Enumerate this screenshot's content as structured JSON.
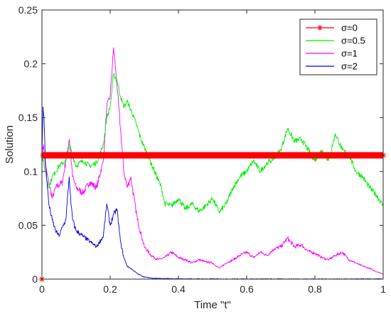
{
  "chart_data": {
    "type": "line",
    "xlabel": "Time \"t\"",
    "ylabel": "Solution",
    "xlim": [
      0,
      1
    ],
    "ylim": [
      0,
      0.25
    ],
    "x_ticks": [
      "0",
      "0.2",
      "0.4",
      "0.6",
      "0.8",
      "1"
    ],
    "y_ticks": [
      "0",
      "0.05",
      "0.1",
      "0.15",
      "0.2",
      "0.25"
    ],
    "x_tick_values": [
      0,
      0.2,
      0.4,
      0.6,
      0.8,
      1
    ],
    "y_tick_values": [
      0,
      0.05,
      0.1,
      0.15,
      0.2,
      0.25
    ],
    "grid": false,
    "legend_position": "top-right",
    "series": [
      {
        "name": "σ=0",
        "legend_label": "σ=0",
        "color": "#ff0000",
        "marker": "asterisk",
        "points": [
          [
            0,
            0
          ],
          [
            0.003,
            0.115
          ],
          [
            1,
            0.115
          ]
        ]
      },
      {
        "name": "σ=0.5",
        "legend_label": "σ=0.5",
        "color": "#00ee00",
        "points": [
          [
            0,
            0.115
          ],
          [
            0.01,
            0.1
          ],
          [
            0.02,
            0.085
          ],
          [
            0.03,
            0.095
          ],
          [
            0.05,
            0.105
          ],
          [
            0.07,
            0.11
          ],
          [
            0.08,
            0.125
          ],
          [
            0.09,
            0.115
          ],
          [
            0.1,
            0.105
          ],
          [
            0.12,
            0.11
          ],
          [
            0.14,
            0.105
          ],
          [
            0.16,
            0.108
          ],
          [
            0.18,
            0.125
          ],
          [
            0.19,
            0.15
          ],
          [
            0.2,
            0.16
          ],
          [
            0.21,
            0.19
          ],
          [
            0.22,
            0.185
          ],
          [
            0.23,
            0.17
          ],
          [
            0.24,
            0.16
          ],
          [
            0.25,
            0.165
          ],
          [
            0.27,
            0.15
          ],
          [
            0.29,
            0.13
          ],
          [
            0.31,
            0.115
          ],
          [
            0.33,
            0.1
          ],
          [
            0.35,
            0.085
          ],
          [
            0.36,
            0.07
          ],
          [
            0.38,
            0.068
          ],
          [
            0.4,
            0.075
          ],
          [
            0.42,
            0.065
          ],
          [
            0.44,
            0.07
          ],
          [
            0.46,
            0.063
          ],
          [
            0.48,
            0.068
          ],
          [
            0.5,
            0.075
          ],
          [
            0.52,
            0.062
          ],
          [
            0.54,
            0.07
          ],
          [
            0.56,
            0.085
          ],
          [
            0.58,
            0.095
          ],
          [
            0.6,
            0.1
          ],
          [
            0.62,
            0.11
          ],
          [
            0.64,
            0.1
          ],
          [
            0.66,
            0.108
          ],
          [
            0.68,
            0.112
          ],
          [
            0.7,
            0.12
          ],
          [
            0.72,
            0.14
          ],
          [
            0.74,
            0.128
          ],
          [
            0.76,
            0.13
          ],
          [
            0.78,
            0.12
          ],
          [
            0.8,
            0.11
          ],
          [
            0.82,
            0.12
          ],
          [
            0.84,
            0.11
          ],
          [
            0.86,
            0.135
          ],
          [
            0.88,
            0.12
          ],
          [
            0.9,
            0.115
          ],
          [
            0.92,
            0.1
          ],
          [
            0.94,
            0.095
          ],
          [
            0.96,
            0.085
          ],
          [
            0.98,
            0.078
          ],
          [
            1.0,
            0.068
          ]
        ]
      },
      {
        "name": "σ=1",
        "legend_label": "σ=1",
        "color": "#ff00ff",
        "points": [
          [
            0,
            0.115
          ],
          [
            0.005,
            0.125
          ],
          [
            0.01,
            0.105
          ],
          [
            0.02,
            0.09
          ],
          [
            0.03,
            0.075
          ],
          [
            0.04,
            0.085
          ],
          [
            0.06,
            0.09
          ],
          [
            0.08,
            0.13
          ],
          [
            0.09,
            0.095
          ],
          [
            0.1,
            0.085
          ],
          [
            0.12,
            0.08
          ],
          [
            0.14,
            0.09
          ],
          [
            0.16,
            0.085
          ],
          [
            0.18,
            0.11
          ],
          [
            0.19,
            0.16
          ],
          [
            0.2,
            0.17
          ],
          [
            0.21,
            0.215
          ],
          [
            0.22,
            0.18
          ],
          [
            0.23,
            0.14
          ],
          [
            0.24,
            0.1
          ],
          [
            0.25,
            0.085
          ],
          [
            0.26,
            0.095
          ],
          [
            0.28,
            0.055
          ],
          [
            0.3,
            0.03
          ],
          [
            0.32,
            0.022
          ],
          [
            0.34,
            0.018
          ],
          [
            0.36,
            0.02
          ],
          [
            0.38,
            0.025
          ],
          [
            0.4,
            0.02
          ],
          [
            0.42,
            0.018
          ],
          [
            0.44,
            0.015
          ],
          [
            0.46,
            0.018
          ],
          [
            0.48,
            0.016
          ],
          [
            0.5,
            0.015
          ],
          [
            0.52,
            0.01
          ],
          [
            0.54,
            0.015
          ],
          [
            0.56,
            0.018
          ],
          [
            0.58,
            0.022
          ],
          [
            0.6,
            0.025
          ],
          [
            0.62,
            0.02
          ],
          [
            0.64,
            0.025
          ],
          [
            0.66,
            0.022
          ],
          [
            0.68,
            0.028
          ],
          [
            0.7,
            0.03
          ],
          [
            0.72,
            0.038
          ],
          [
            0.74,
            0.03
          ],
          [
            0.76,
            0.032
          ],
          [
            0.78,
            0.026
          ],
          [
            0.8,
            0.024
          ],
          [
            0.82,
            0.02
          ],
          [
            0.84,
            0.018
          ],
          [
            0.86,
            0.022
          ],
          [
            0.88,
            0.025
          ],
          [
            0.9,
            0.018
          ],
          [
            0.92,
            0.015
          ],
          [
            0.94,
            0.012
          ],
          [
            0.96,
            0.01
          ],
          [
            0.98,
            0.007
          ],
          [
            1.0,
            0.005
          ]
        ]
      },
      {
        "name": "σ=2",
        "legend_label": "σ=2",
        "color": "#0000ee",
        "points": [
          [
            0,
            0.115
          ],
          [
            0.003,
            0.16
          ],
          [
            0.006,
            0.15
          ],
          [
            0.01,
            0.11
          ],
          [
            0.015,
            0.09
          ],
          [
            0.02,
            0.07
          ],
          [
            0.03,
            0.055
          ],
          [
            0.04,
            0.045
          ],
          [
            0.05,
            0.04
          ],
          [
            0.06,
            0.048
          ],
          [
            0.07,
            0.055
          ],
          [
            0.08,
            0.095
          ],
          [
            0.085,
            0.07
          ],
          [
            0.09,
            0.055
          ],
          [
            0.1,
            0.045
          ],
          [
            0.12,
            0.04
          ],
          [
            0.14,
            0.035
          ],
          [
            0.16,
            0.03
          ],
          [
            0.18,
            0.04
          ],
          [
            0.19,
            0.07
          ],
          [
            0.2,
            0.05
          ],
          [
            0.21,
            0.06
          ],
          [
            0.22,
            0.065
          ],
          [
            0.23,
            0.035
          ],
          [
            0.24,
            0.02
          ],
          [
            0.25,
            0.012
          ],
          [
            0.26,
            0.01
          ],
          [
            0.28,
            0.005
          ],
          [
            0.3,
            0.002
          ],
          [
            0.32,
            0.001
          ],
          [
            0.35,
            0.0005
          ],
          [
            0.4,
            0.0002
          ],
          [
            0.6,
            0.0001
          ],
          [
            0.8,
            0.0001
          ],
          [
            1.0,
            0.0001
          ]
        ]
      }
    ]
  }
}
